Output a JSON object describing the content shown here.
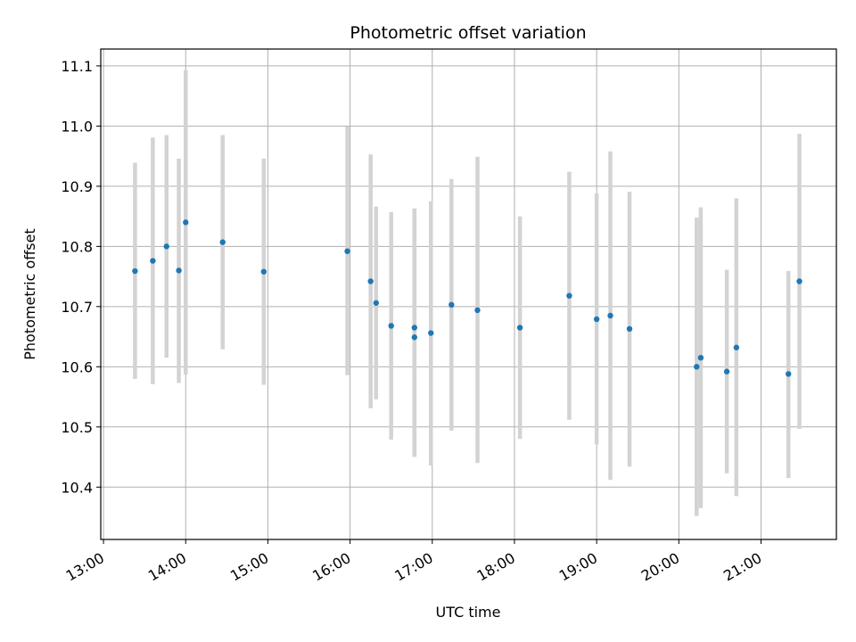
{
  "chart_data": {
    "type": "scatter",
    "title": "Photometric offset variation",
    "xlabel": "UTC time",
    "ylabel": "Photometric offset",
    "xlim": [
      "12:58",
      "21:55"
    ],
    "ylim": [
      10.313,
      11.128
    ],
    "x_ticks": [
      "13:00",
      "14:00",
      "15:00",
      "16:00",
      "17:00",
      "18:00",
      "19:00",
      "20:00",
      "21:00"
    ],
    "y_ticks": [
      10.4,
      10.5,
      10.6,
      10.7,
      10.8,
      10.9,
      11.0,
      11.1
    ],
    "grid": true,
    "point_color": "#1f77b4",
    "errorbar_color": "#d3d3d3",
    "points": [
      {
        "x": "13:23",
        "y": 10.759,
        "low": 10.58,
        "high": 10.939
      },
      {
        "x": "13:36",
        "y": 10.776,
        "low": 10.571,
        "high": 10.981
      },
      {
        "x": "13:46",
        "y": 10.8,
        "low": 10.615,
        "high": 10.985
      },
      {
        "x": "13:55",
        "y": 10.76,
        "low": 10.573,
        "high": 10.946
      },
      {
        "x": "14:00",
        "y": 10.84,
        "low": 10.587,
        "high": 11.093
      },
      {
        "x": "14:27",
        "y": 10.807,
        "low": 10.629,
        "high": 10.985
      },
      {
        "x": "14:57",
        "y": 10.758,
        "low": 10.57,
        "high": 10.946
      },
      {
        "x": "15:58",
        "y": 10.792,
        "low": 10.586,
        "high": 10.999
      },
      {
        "x": "16:15",
        "y": 10.742,
        "low": 10.531,
        "high": 10.953
      },
      {
        "x": "16:19",
        "y": 10.706,
        "low": 10.546,
        "high": 10.866
      },
      {
        "x": "16:30",
        "y": 10.668,
        "low": 10.479,
        "high": 10.857
      },
      {
        "x": "16:47",
        "y": 10.665,
        "low": 10.45,
        "high": 10.863
      },
      {
        "x": "16:47",
        "y": 10.649,
        "low": 10.45,
        "high": 10.863
      },
      {
        "x": "16:59",
        "y": 10.656,
        "low": 10.436,
        "high": 10.875
      },
      {
        "x": "17:14",
        "y": 10.703,
        "low": 10.494,
        "high": 10.912
      },
      {
        "x": "17:33",
        "y": 10.694,
        "low": 10.44,
        "high": 10.949
      },
      {
        "x": "18:04",
        "y": 10.665,
        "low": 10.48,
        "high": 10.85
      },
      {
        "x": "18:40",
        "y": 10.718,
        "low": 10.512,
        "high": 10.924
      },
      {
        "x": "19:00",
        "y": 10.679,
        "low": 10.471,
        "high": 10.888
      },
      {
        "x": "19:10",
        "y": 10.685,
        "low": 10.412,
        "high": 10.958
      },
      {
        "x": "19:24",
        "y": 10.663,
        "low": 10.434,
        "high": 10.891
      },
      {
        "x": "20:13",
        "y": 10.6,
        "low": 10.352,
        "high": 10.848
      },
      {
        "x": "20:16",
        "y": 10.615,
        "low": 10.365,
        "high": 10.865
      },
      {
        "x": "20:35",
        "y": 10.592,
        "low": 10.423,
        "high": 10.761
      },
      {
        "x": "20:42",
        "y": 10.632,
        "low": 10.385,
        "high": 10.88
      },
      {
        "x": "21:20",
        "y": 10.588,
        "low": 10.415,
        "high": 10.759
      },
      {
        "x": "21:28",
        "y": 10.742,
        "low": 10.497,
        "high": 10.987
      }
    ]
  }
}
